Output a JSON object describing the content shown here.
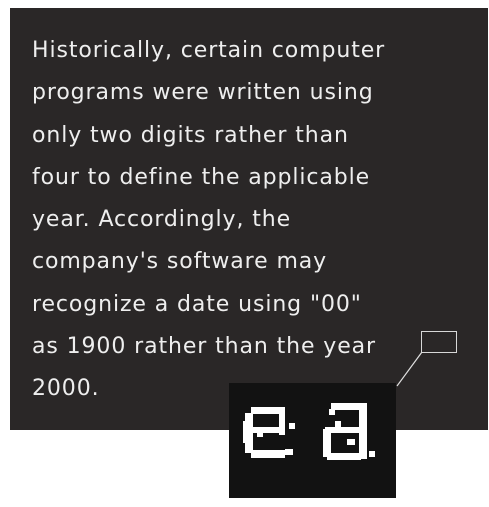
{
  "paragraph": {
    "lines": [
      "Historically, certain computer",
      "programs were written using",
      "only two digits rather than",
      "four to define the applicable",
      "year. Accordingly, the",
      "company's software may",
      "recognize a date using \"00\"",
      "as 1900 rather than the year",
      "2000."
    ]
  },
  "zoom_inset": {
    "magnified_text": "ea"
  },
  "colors": {
    "panel_background": "#2a2727",
    "text": "#eeeeee",
    "inset_background": "#121212",
    "inset_glyph": "#ffffff",
    "page_background": "#ffffff"
  }
}
